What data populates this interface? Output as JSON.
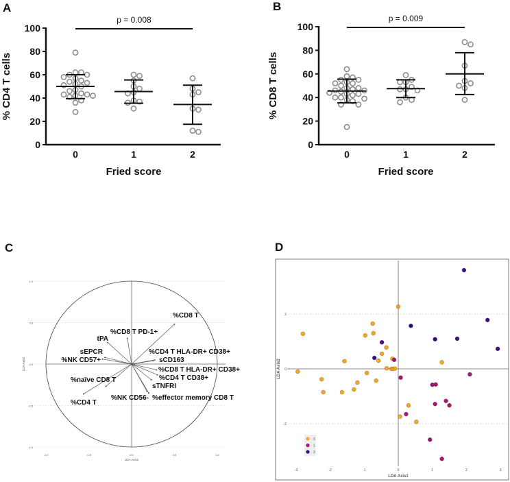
{
  "panel_labels": [
    "A",
    "B",
    "C",
    "D"
  ],
  "colors": {
    "dot_stroke": "#8c8c8c",
    "axis": "#111111",
    "group0": "#f5a623",
    "group1": "#a3186f",
    "group2": "#3b0c87"
  },
  "chart_data": [
    {
      "type": "scatter",
      "title": "",
      "xlabel": "Fried score",
      "ylabel": "% CD4 T cells",
      "ylim": [
        0,
        100
      ],
      "yticks": [
        "0",
        "20",
        "40",
        "60",
        "80",
        "100"
      ],
      "categories": [
        "0",
        "1",
        "2"
      ],
      "annotation": "p = 0.008",
      "series": [
        {
          "name": "0",
          "values": [
            79,
            62,
            62,
            60,
            60,
            58,
            57,
            55,
            54,
            53,
            52,
            51,
            50,
            47,
            46,
            44,
            43,
            43,
            42,
            42,
            41,
            38,
            36,
            28
          ],
          "mean": 50,
          "sd_low": 39.5,
          "sd_high": 60
        },
        {
          "name": "1",
          "values": [
            60,
            59,
            55,
            50,
            48,
            45,
            44,
            38,
            37,
            36,
            31
          ],
          "mean": 45.6,
          "sd_low": 35.5,
          "sd_high": 55.5
        },
        {
          "name": "2",
          "values": [
            57,
            48,
            45,
            43,
            31,
            30,
            12,
            11
          ],
          "mean": 34.5,
          "sd_low": 17.5,
          "sd_high": 51
        }
      ]
    },
    {
      "type": "scatter",
      "title": "",
      "xlabel": "Fried score",
      "ylabel": "% CD8 T cells",
      "ylim": [
        0,
        100
      ],
      "yticks": [
        "0",
        "20",
        "40",
        "60",
        "80",
        "100"
      ],
      "categories": [
        "0",
        "1",
        "2"
      ],
      "annotation": "p = 0.009",
      "series": [
        {
          "name": "0",
          "values": [
            64,
            58,
            57,
            55,
            55,
            53,
            52,
            52,
            50,
            48,
            48,
            47,
            46,
            46,
            45,
            44,
            43,
            43,
            42,
            40,
            40,
            39,
            38,
            37,
            34,
            34,
            15
          ],
          "mean": 45.5,
          "sd_low": 35.5,
          "sd_high": 55.5
        },
        {
          "name": "1",
          "values": [
            59,
            55,
            53,
            53,
            49,
            47,
            47,
            46,
            40,
            38,
            36
          ],
          "mean": 47.5,
          "sd_low": 40,
          "sd_high": 55
        },
        {
          "name": "2",
          "values": [
            87,
            85,
            67,
            54,
            52,
            50,
            48,
            38
          ],
          "mean": 60,
          "sd_low": 42.5,
          "sd_high": 78
        }
      ]
    },
    {
      "type": "scatter",
      "subtype": "correlation-circle",
      "xlabel": "LDA Axis1",
      "ylabel": "LDA Axis2",
      "xlim": [
        -1.1,
        1.1
      ],
      "ylim": [
        -1.1,
        1.1
      ],
      "xticks": [
        "-1.0",
        "-0.5",
        "0.0",
        "0.5",
        "1.0"
      ],
      "yticks": [
        "-1.0",
        "-0.5",
        "0.0",
        "0.5",
        "1.0"
      ],
      "vectors": [
        {
          "label": "%CD8 T",
          "x": 0.5,
          "y": 0.48
        },
        {
          "label": "%CD8 T PD-1+",
          "x": -0.05,
          "y": 0.31
        },
        {
          "label": "tPA",
          "x": -0.28,
          "y": 0.26
        },
        {
          "label": "sEPCR",
          "x": -0.31,
          "y": 0.08
        },
        {
          "label": "%NK CD57+",
          "x": -0.34,
          "y": 0.06
        },
        {
          "label": "%CD4 T HLA-DR+ CD38+",
          "x": 0.27,
          "y": 0.05
        },
        {
          "label": "sCD163",
          "x": 0.25,
          "y": 0.04
        },
        {
          "label": "%CD8 T HLA-DR+ CD38+",
          "x": 0.29,
          "y": -0.07
        },
        {
          "label": "%CD4 T CD38+",
          "x": 0.3,
          "y": -0.13
        },
        {
          "label": "sTNFRI",
          "x": 0.23,
          "y": -0.19
        },
        {
          "label": "%NK CD56-",
          "x": 0.18,
          "y": -0.33
        },
        {
          "label": "%effector memory CD8 T",
          "x": 0.2,
          "y": -0.35
        },
        {
          "label": "%naïve CD8 T",
          "x": -0.3,
          "y": -0.27
        },
        {
          "label": "%CD4 T",
          "x": -0.56,
          "y": -0.36
        }
      ]
    },
    {
      "type": "scatter",
      "xlabel": "LDA Axis1",
      "ylabel": "LDA Axis2",
      "xticks": [
        "-3",
        "-2",
        "-1",
        "0",
        "1",
        "2",
        "3"
      ],
      "yticks": [
        "-2",
        "0",
        "2"
      ],
      "legend": "bottom-left",
      "series": [
        {
          "name": "0",
          "points": [
            [
              0.0,
              2.27
            ],
            [
              -0.75,
              1.65
            ],
            [
              -0.73,
              1.3
            ],
            [
              -0.97,
              1.22
            ],
            [
              -2.8,
              1.28
            ],
            [
              -0.35,
              0.78
            ],
            [
              -0.48,
              0.55
            ],
            [
              -0.58,
              0.3
            ],
            [
              -0.17,
              0.37
            ],
            [
              -1.58,
              0.28
            ],
            [
              -2.95,
              -0.1
            ],
            [
              -0.34,
              0.02
            ],
            [
              -0.2,
              0.0
            ],
            [
              -0.15,
              0.0
            ],
            [
              -0.1,
              0.01
            ],
            [
              -0.92,
              -0.15
            ],
            [
              -2.25,
              -0.38
            ],
            [
              -1.2,
              -0.5
            ],
            [
              -0.65,
              -0.43
            ],
            [
              -2.2,
              -0.85
            ],
            [
              -1.65,
              -0.85
            ],
            [
              -1.3,
              -0.75
            ],
            [
              1.28,
              0.24
            ],
            [
              0.3,
              -1.33
            ],
            [
              0.05,
              -1.74
            ],
            [
              0.53,
              -1.93
            ]
          ]
        },
        {
          "name": "1",
          "points": [
            [
              -0.12,
              0.33
            ],
            [
              0.07,
              -0.32
            ],
            [
              1.0,
              -0.58
            ],
            [
              1.1,
              -0.57
            ],
            [
              2.1,
              -0.2
            ],
            [
              1.4,
              -1.17
            ],
            [
              1.5,
              -1.33
            ],
            [
              1.08,
              -1.28
            ],
            [
              0.23,
              -1.65
            ],
            [
              0.93,
              -2.58
            ],
            [
              1.28,
              -3.28
            ]
          ]
        },
        {
          "name": "2",
          "points": [
            [
              1.93,
              3.6
            ],
            [
              2.62,
              1.78
            ],
            [
              0.37,
              1.57
            ],
            [
              1.08,
              1.08
            ],
            [
              1.73,
              1.1
            ],
            [
              2.92,
              0.73
            ],
            [
              -0.48,
              0.97
            ],
            [
              -0.7,
              0.4
            ]
          ]
        }
      ]
    }
  ]
}
